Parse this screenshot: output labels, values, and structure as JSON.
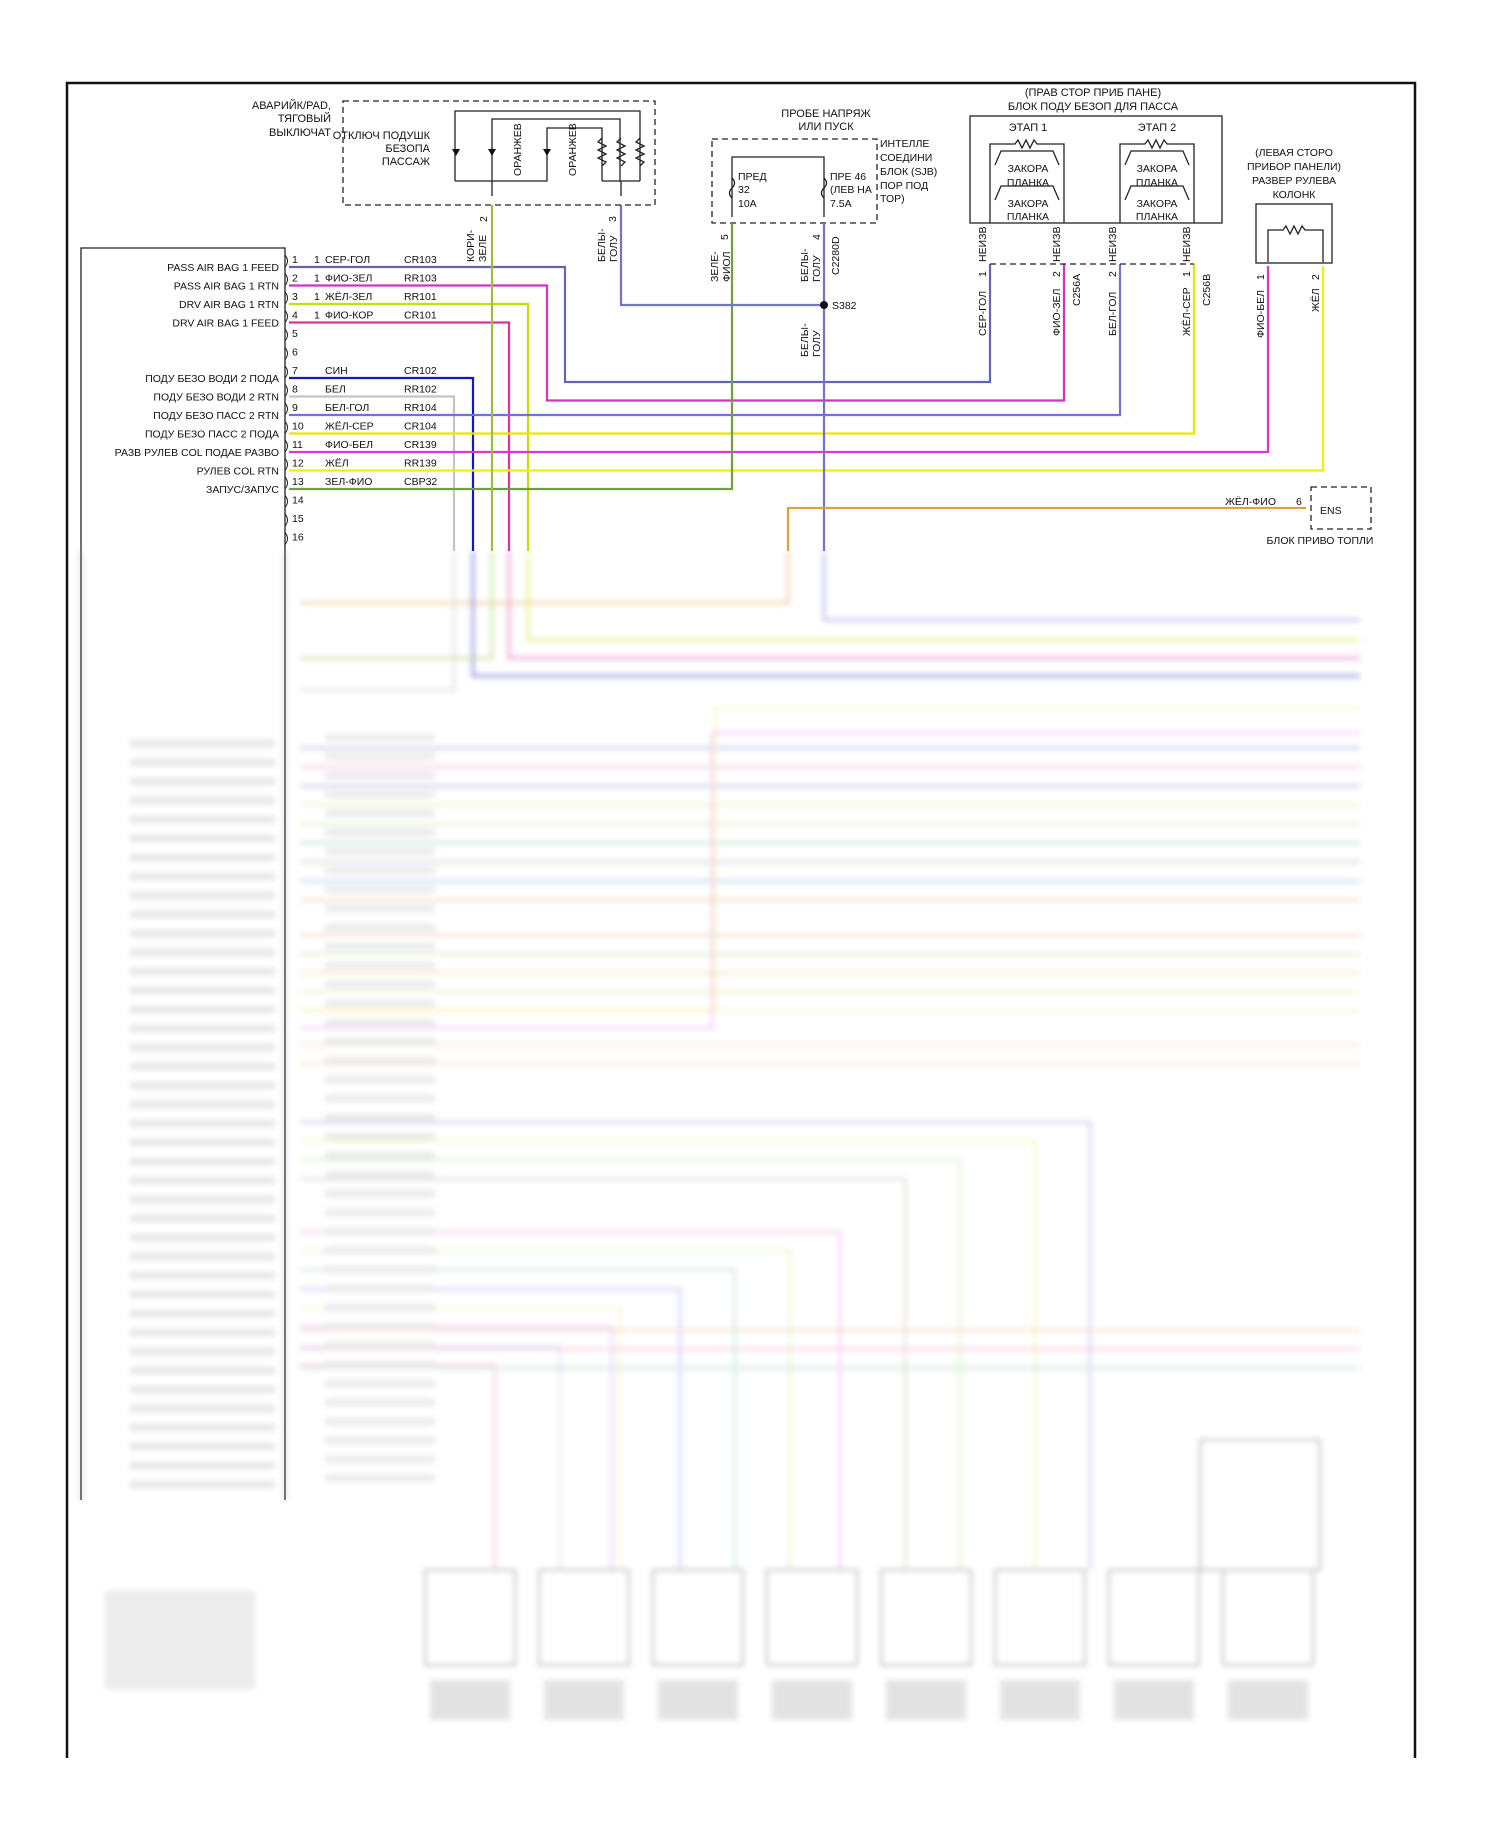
{
  "colors": {
    "ser_gol": "#6464b4",
    "fio_zel": "#d232c3",
    "zhel_zel": "#c6e000",
    "fio_kor": "#e0309a",
    "sin": "#1414c8",
    "bel": "#c4c4c4",
    "bel_gol": "#7272d6",
    "zhel_ser": "#e6e600",
    "fio_bel": "#d83ad0",
    "zhel": "#f0f000",
    "zel_fio": "#6ea040",
    "kor_zel": "#9ac040",
    "zhel_fio": "#e0a040"
  },
  "switch": {
    "title_lines": [
      "АВАРИЙК/PAD,",
      "ТЯГОВЫЙ",
      "ВЫКЛЮЧАТ"
    ],
    "name_lines": [
      "ОТКЛЮЧ ПОДУШК",
      "БЕЗОПА",
      "ПАССАЖ"
    ],
    "led_labels": [
      "ОРАНЖЕВ",
      "ОРАНЖЕВ"
    ],
    "pins": [
      "2",
      "3"
    ],
    "wires": [
      "КОРИ-",
      "ЗЕЛЕ",
      "БЕЛЫ-",
      "ГОЛУ"
    ]
  },
  "sjb": {
    "header_lines": [
      "ПРОБЕ НАПРЯЖ",
      "ИЛИ ПУСК"
    ],
    "name_lines": [
      "ИНТЕЛЛЕ",
      "СОЕДИНИ",
      "БЛОК (SJB)",
      "ПОР ПОД",
      "ТОР)"
    ],
    "fuse1": [
      "ПРЕД",
      "32",
      "10A"
    ],
    "fuse2": [
      "ПРЕ 46",
      "(ЛЕВ НА",
      "7.5A"
    ],
    "pins": [
      "5",
      "4"
    ],
    "connector": "C2280D",
    "wires": [
      "ЗЕЛЕ-",
      "ФИОЛ",
      "БЕЛЫ-",
      "ГОЛУ"
    ],
    "splice": "S382",
    "splice_wire": [
      "БЕЛЫ-",
      "ГОЛУ"
    ]
  },
  "pass_module": {
    "title_lines": [
      "(ПРАВ СТОР ПРИБ ПАНЕ)",
      "БЛОК ПОДУ БЕЗОП ДЛЯ ПАССА"
    ],
    "stages": [
      "ЭТАП 1",
      "ЭТАП 2"
    ],
    "shorting_bar": [
      "ЗАКОРА",
      "ПЛАНКА"
    ],
    "unknown": "НЕИЗВ",
    "pins": [
      "1",
      "2",
      "2",
      "1"
    ],
    "connectors": [
      "C256A",
      "C256B"
    ],
    "wires": [
      "СЕР-ГОЛ",
      "ФИО-ЗЕЛ",
      "БЕЛ-ГОЛ",
      "ЖЁЛ-СЕР"
    ]
  },
  "column": {
    "title_lines": [
      "(ЛЕВАЯ СТОРО",
      "ПРИБОР ПАНЕЛИ)",
      "РАЗВЕР РУЛЕВА",
      "КОЛОНК"
    ],
    "pins": [
      "1",
      "2"
    ],
    "wires": [
      "ФИО-БЕЛ",
      "ЖЁЛ"
    ]
  },
  "ens": {
    "wire": "ЖЁЛ-ФИО",
    "pin": "6",
    "label": "ENS",
    "title": "БЛОК ПРИВО ТОПЛИ"
  },
  "module_pins": [
    {
      "pin": "1",
      "label": "PASS AIR BAG 1 FEED",
      "sub": "1",
      "wire": "СЕР-ГОЛ",
      "circuit": "CR103"
    },
    {
      "pin": "2",
      "label": "PASS AIR BAG 1 RTN",
      "sub": "1",
      "wire": "ФИО-ЗЕЛ",
      "circuit": "RR103"
    },
    {
      "pin": "3",
      "label": "DRV AIR BAG 1 RTN",
      "sub": "1",
      "wire": "ЖЁЛ-ЗЕЛ",
      "circuit": "RR101"
    },
    {
      "pin": "4",
      "label": "DRV AIR BAG 1 FEED",
      "sub": "1",
      "wire": "ФИО-КОР",
      "circuit": "CR101"
    },
    {
      "pin": "5",
      "label": "",
      "sub": "",
      "wire": "",
      "circuit": ""
    },
    {
      "pin": "6",
      "label": "",
      "sub": "",
      "wire": "",
      "circuit": ""
    },
    {
      "pin": "7",
      "label": "ПОДУ БЕЗО ВОДИ 2 ПОДА",
      "sub": "",
      "wire": "СИН",
      "circuit": "CR102"
    },
    {
      "pin": "8",
      "label": "ПОДУ БЕЗО ВОДИ 2 RTN",
      "sub": "",
      "wire": "БЕЛ",
      "circuit": "RR102"
    },
    {
      "pin": "9",
      "label": "ПОДУ БЕЗО ПАСС 2 RTN",
      "sub": "",
      "wire": "БЕЛ-ГОЛ",
      "circuit": "RR104"
    },
    {
      "pin": "10",
      "label": "ПОДУ БЕЗО ПАСС 2 ПОДА",
      "sub": "",
      "wire": "ЖЁЛ-СЕР",
      "circuit": "CR104"
    },
    {
      "pin": "11",
      "label": "РАЗВ РУЛЕВ COL ПОДАЕ РАЗВО",
      "sub": "",
      "wire": "ФИО-БЕЛ",
      "circuit": "CR139"
    },
    {
      "pin": "12",
      "label": "РУЛЕВ COL RTN",
      "sub": "",
      "wire": "ЖЁЛ",
      "circuit": "RR139"
    },
    {
      "pin": "13",
      "label": "ЗАПУС/ЗАПУС",
      "sub": "",
      "wire": "ЗЕЛ-ФИО",
      "circuit": "CBP32"
    },
    {
      "pin": "14",
      "label": "",
      "sub": "",
      "wire": "",
      "circuit": ""
    },
    {
      "pin": "15",
      "label": "",
      "sub": "",
      "wire": "",
      "circuit": ""
    },
    {
      "pin": "16",
      "label": "",
      "sub": "",
      "wire": "",
      "circuit": ""
    }
  ]
}
